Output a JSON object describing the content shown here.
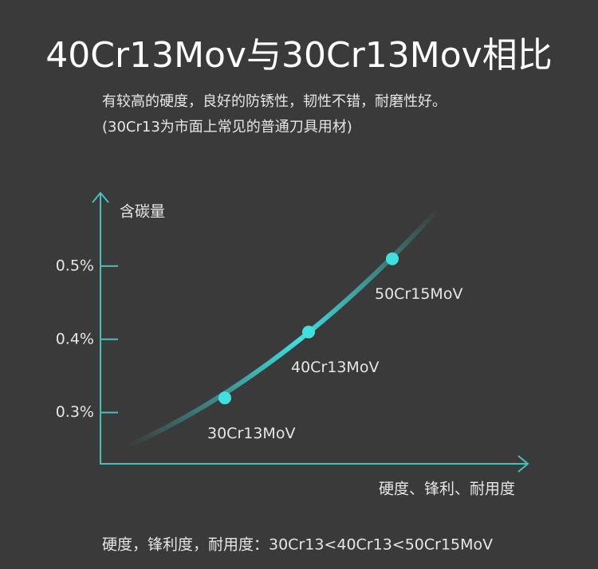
{
  "chart_data": {
    "type": "scatter",
    "title": "40Cr13Mov与30Cr13Mov相比",
    "subtitle": [
      "有较高的硬度，良好的防锈性，韧性不错，耐磨性好。",
      "(30Cr13为市面上常见的普通刀具用材)"
    ],
    "y_label": "含碳量",
    "x_label": "硬度、锋利、耐用度",
    "categories": [
      "30Cr13MoV",
      "40Cr13MoV",
      "50Cr15MoV"
    ],
    "values": [
      0.32,
      0.41,
      0.51
    ],
    "color": "#3fe0e0",
    "ylim": [
      0.23,
      0.6
    ],
    "yticks": [
      {
        "value": 0.3,
        "label": "0.3%"
      },
      {
        "value": 0.4,
        "label": "0.4%"
      },
      {
        "value": 0.5,
        "label": "0.5%"
      }
    ],
    "footer": "硬度，锋利度，耐用度：30Cr13<40Cr13<50Cr15MoV"
  }
}
